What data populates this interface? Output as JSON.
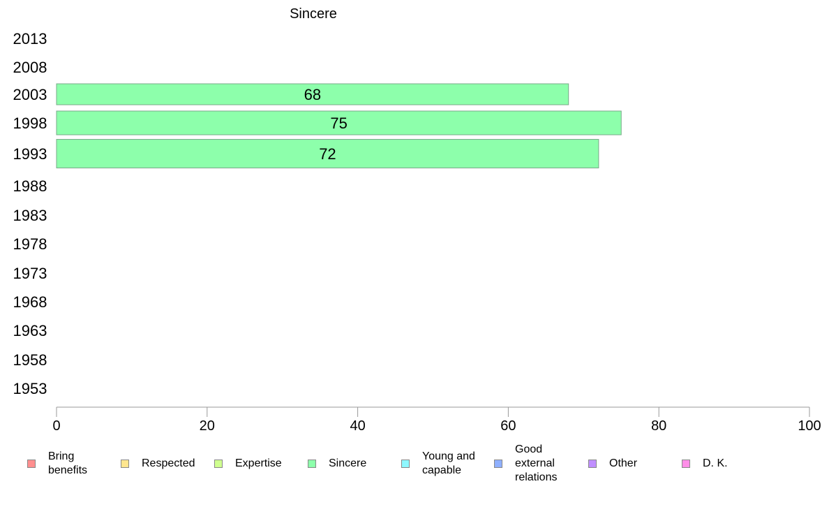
{
  "chart_data": {
    "type": "bar",
    "orientation": "horizontal",
    "title": "Sincere",
    "categories": [
      "2013",
      "2008",
      "2003",
      "1998",
      "1993",
      "1988",
      "1983",
      "1978",
      "1973",
      "1968",
      "1963",
      "1958",
      "1953"
    ],
    "values": [
      null,
      null,
      68,
      75,
      72,
      null,
      null,
      null,
      null,
      null,
      null,
      null,
      null
    ],
    "data_labels": [
      "",
      "",
      "68",
      "75",
      "72",
      "",
      "",
      "",
      "",
      "",
      "",
      "",
      ""
    ],
    "xlim": [
      0,
      100
    ],
    "xticks": [
      "0",
      "20",
      "40",
      "60",
      "80",
      "100"
    ],
    "grid": false,
    "legend_position": "bottom",
    "bar_color": "#8dffab",
    "bar_border_color": "#7aa88a",
    "legend": [
      {
        "label": "Bring\nbenefits",
        "color": "#ff8f8f"
      },
      {
        "label": "Respected",
        "color": "#ffe68f"
      },
      {
        "label": "Expertise",
        "color": "#cfff8f"
      },
      {
        "label": "Sincere",
        "color": "#8dffab"
      },
      {
        "label": "Young and\ncapable",
        "color": "#8ff8ff"
      },
      {
        "label": "Good\nexternal\nrelations",
        "color": "#8fb0ff"
      },
      {
        "label": "Other",
        "color": "#c08fff"
      },
      {
        "label": "D. K.",
        "color": "#ff8fe8"
      }
    ]
  }
}
